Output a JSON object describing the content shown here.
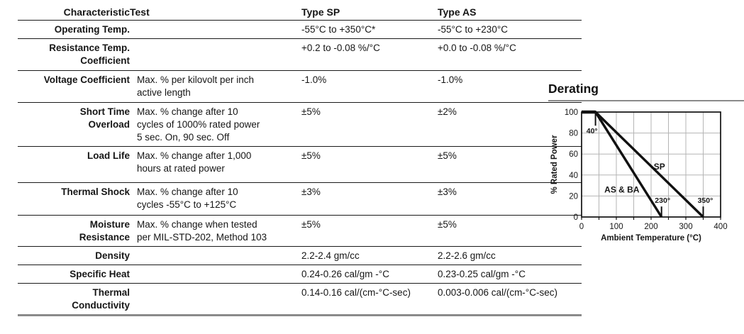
{
  "table": {
    "headers": [
      "Characteristic",
      "Test",
      "Type SP",
      "Type AS"
    ],
    "rows": [
      {
        "characteristic": "Operating Temp.",
        "test": "",
        "type_sp": "-55°C to +350°C*",
        "type_as": "-55°C to +230°C"
      },
      {
        "characteristic": "Resistance Temp.\nCoefficient",
        "test": "",
        "type_sp": "+0.2 to -0.08 %/°C",
        "type_as": "+0.0 to -0.08 %/°C"
      },
      {
        "characteristic": "Voltage Coefficient",
        "test": "Max. % per kilovolt per inch\nactive length",
        "type_sp": "-1.0%",
        "type_as": "-1.0%"
      },
      {
        "characteristic": "Short Time\nOverload",
        "test": "Max. % change after 10\ncycles of 1000% rated power\n5 sec. On, 90 sec. Off",
        "type_sp": "±5%",
        "type_as": "±2%"
      },
      {
        "characteristic": "Load Life",
        "test": "Max. % change after 1,000\nhours at rated power",
        "type_sp": "±5%",
        "type_as": "±5%"
      },
      {
        "characteristic": "Thermal Shock",
        "test": "Max. % change after 10\ncycles -55°C to +125°C",
        "type_sp": "±3%",
        "type_as": "±3%"
      },
      {
        "characteristic": "Moisture\nResistance",
        "test": "Max. % change when tested\nper MIL-STD-202, Method 103",
        "type_sp": "±5%",
        "type_as": "±5%"
      },
      {
        "characteristic": "Density",
        "test": "",
        "type_sp": "2.2-2.4 gm/cc",
        "type_as": "2.2-2.6 gm/cc"
      },
      {
        "characteristic": "Specific Heat",
        "test": "",
        "type_sp": "0.24-0.26 cal/gm -°C",
        "type_as": "0.23-0.25 cal/gm -°C"
      },
      {
        "characteristic": "Thermal\nConductivity",
        "test": "",
        "type_sp": "0.14-0.16 cal/(cm-°C-sec)",
        "type_as": "0.003-0.006 cal/(cm-°C-sec)"
      }
    ]
  },
  "chart_data": {
    "type": "line",
    "title": "Derating",
    "xlabel": "Ambient Temperature (°C)",
    "ylabel": "% Rated Power",
    "xlim": [
      0,
      400
    ],
    "ylim": [
      0,
      100
    ],
    "x_ticks": [
      0,
      100,
      200,
      300,
      400
    ],
    "y_ticks": [
      0,
      20,
      40,
      60,
      80,
      100
    ],
    "x_grid_step": 50,
    "y_grid_step": 20,
    "grid": true,
    "series": [
      {
        "name": "SP",
        "points": [
          [
            0,
            100
          ],
          [
            40,
            100
          ],
          [
            350,
            0
          ]
        ],
        "label": {
          "text": "SP",
          "x": 224,
          "y": 48
        }
      },
      {
        "name": "AS & BA",
        "points": [
          [
            0,
            100
          ],
          [
            40,
            100
          ],
          [
            230,
            0
          ]
        ],
        "label": {
          "text": "AS & BA",
          "x": 116,
          "y": 26
        }
      }
    ],
    "markers": [
      {
        "text": "40°",
        "x": 40,
        "label_x": 30,
        "label_y": 82,
        "tick_from": 100,
        "tick_to": 87
      },
      {
        "text": "230°",
        "x": 230,
        "label_x": 233,
        "label_y": 16,
        "tick_from": 0,
        "tick_to": 10
      },
      {
        "text": "350°",
        "x": 350,
        "label_x": 356,
        "label_y": 16,
        "tick_from": 0,
        "tick_to": 10
      }
    ],
    "colors": {
      "line": "#111111",
      "grid": "#b5b5b5",
      "text": "#161616"
    }
  }
}
